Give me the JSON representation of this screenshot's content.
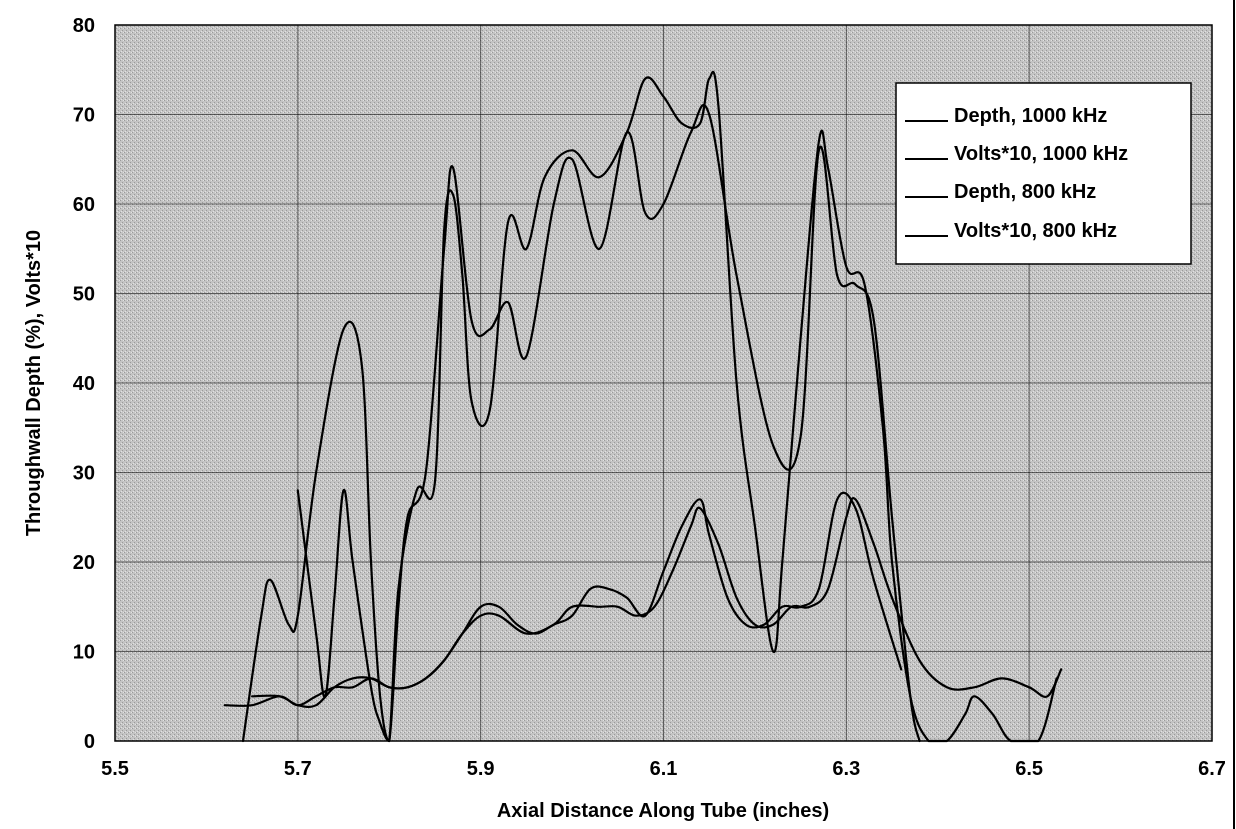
{
  "chart_data": {
    "type": "line",
    "title": "",
    "xlabel": "Axial Distance Along Tube (inches)",
    "ylabel": "Throughwall Depth (%), Volts*10",
    "xlim": [
      5.5,
      6.7
    ],
    "ylim": [
      0,
      80
    ],
    "xticks": [
      "5.5",
      "5.7",
      "5.9",
      "6.1",
      "6.3",
      "6.5",
      "6.7"
    ],
    "yticks": [
      "0",
      "10",
      "20",
      "30",
      "40",
      "50",
      "60",
      "70",
      "80"
    ],
    "grid": true,
    "legend_position": "top-right",
    "colors": {
      "line": "#000000",
      "plot_background": "#c8c8c8",
      "frame": "#000000"
    },
    "series": [
      {
        "name": "Depth, 1000 kHz",
        "x": [
          5.64,
          5.66,
          5.67,
          5.69,
          5.7,
          5.72,
          5.75,
          5.77,
          5.78,
          5.79,
          5.8,
          5.81,
          5.82,
          5.84,
          5.86,
          5.87,
          5.89,
          5.91,
          5.93,
          5.95,
          5.98,
          6.0,
          6.03,
          6.06,
          6.08,
          6.1,
          6.13,
          6.15,
          6.18,
          6.22,
          6.25,
          6.27,
          6.29,
          6.31,
          6.33,
          6.35,
          6.37,
          6.38
        ],
        "values": [
          0,
          14,
          18,
          13,
          14,
          30,
          46,
          42,
          20,
          5,
          0,
          15,
          25,
          30,
          55,
          64,
          47,
          46,
          49,
          43,
          60,
          65,
          55,
          68,
          59,
          60,
          68,
          70,
          52,
          33,
          34,
          66,
          52,
          51,
          47,
          25,
          5,
          0
        ]
      },
      {
        "name": "Volts*10, 1000 kHz",
        "x": [
          5.62,
          5.65,
          5.68,
          5.7,
          5.72,
          5.74,
          5.76,
          5.78,
          5.8,
          5.82,
          5.84,
          5.86,
          5.88,
          5.9,
          5.92,
          5.95,
          5.98,
          6.0,
          6.03,
          6.05,
          6.07,
          6.09,
          6.11,
          6.13,
          6.14,
          6.16,
          6.18,
          6.2,
          6.22,
          6.24,
          6.26,
          6.28,
          6.3,
          6.31,
          6.33,
          6.35,
          6.38,
          6.41,
          6.44,
          6.47,
          6.5,
          6.52,
          6.535
        ],
        "values": [
          4,
          4,
          5,
          4,
          5,
          6,
          6,
          7,
          6,
          6,
          7,
          9,
          12,
          14,
          14,
          12,
          13,
          15,
          15,
          15,
          14,
          15,
          19,
          24,
          26,
          22,
          16,
          13,
          13,
          15,
          15,
          17,
          25,
          27,
          22,
          16,
          9,
          6,
          6,
          7,
          6,
          5,
          8
        ]
      },
      {
        "name": "Depth, 800 kHz",
        "x": [
          5.7,
          5.72,
          5.73,
          5.74,
          5.75,
          5.76,
          5.78,
          5.79,
          5.8,
          5.81,
          5.83,
          5.85,
          5.86,
          5.87,
          5.88,
          5.89,
          5.91,
          5.93,
          5.95,
          5.97,
          6.0,
          6.03,
          6.06,
          6.08,
          6.1,
          6.12,
          6.14,
          6.15,
          6.16,
          6.18,
          6.2,
          6.22,
          6.23,
          6.25,
          6.27,
          6.28,
          6.3,
          6.32,
          6.34,
          6.35,
          6.37,
          6.39,
          6.41,
          6.43,
          6.44,
          6.46,
          6.48,
          6.51,
          6.53
        ],
        "values": [
          28,
          12,
          5,
          16,
          28,
          20,
          6,
          2,
          0,
          17,
          28,
          29,
          57,
          61,
          52,
          38,
          37,
          58,
          55,
          63,
          66,
          63,
          68,
          74,
          72,
          69,
          69,
          74,
          71,
          40,
          24,
          10,
          20,
          45,
          67,
          64,
          53,
          51,
          35,
          20,
          5,
          0,
          0,
          3,
          5,
          3,
          0,
          0,
          7
        ]
      },
      {
        "name": "Volts*10, 800 kHz",
        "x": [
          5.65,
          5.68,
          5.7,
          5.72,
          5.74,
          5.76,
          5.78,
          5.8,
          5.82,
          5.84,
          5.86,
          5.88,
          5.9,
          5.92,
          5.94,
          5.96,
          5.98,
          6.0,
          6.02,
          6.04,
          6.06,
          6.08,
          6.1,
          6.12,
          6.14,
          6.15,
          6.17,
          6.19,
          6.21,
          6.23,
          6.25,
          6.27,
          6.29,
          6.31,
          6.33,
          6.36
        ],
        "values": [
          5,
          5,
          4,
          4,
          6,
          7,
          7,
          6,
          6,
          7,
          9,
          12,
          15,
          15,
          13,
          12,
          13,
          14,
          17,
          17,
          16,
          14,
          19,
          24,
          27,
          23,
          16,
          13,
          13,
          15,
          15,
          17,
          27,
          26,
          18,
          8
        ]
      }
    ]
  }
}
